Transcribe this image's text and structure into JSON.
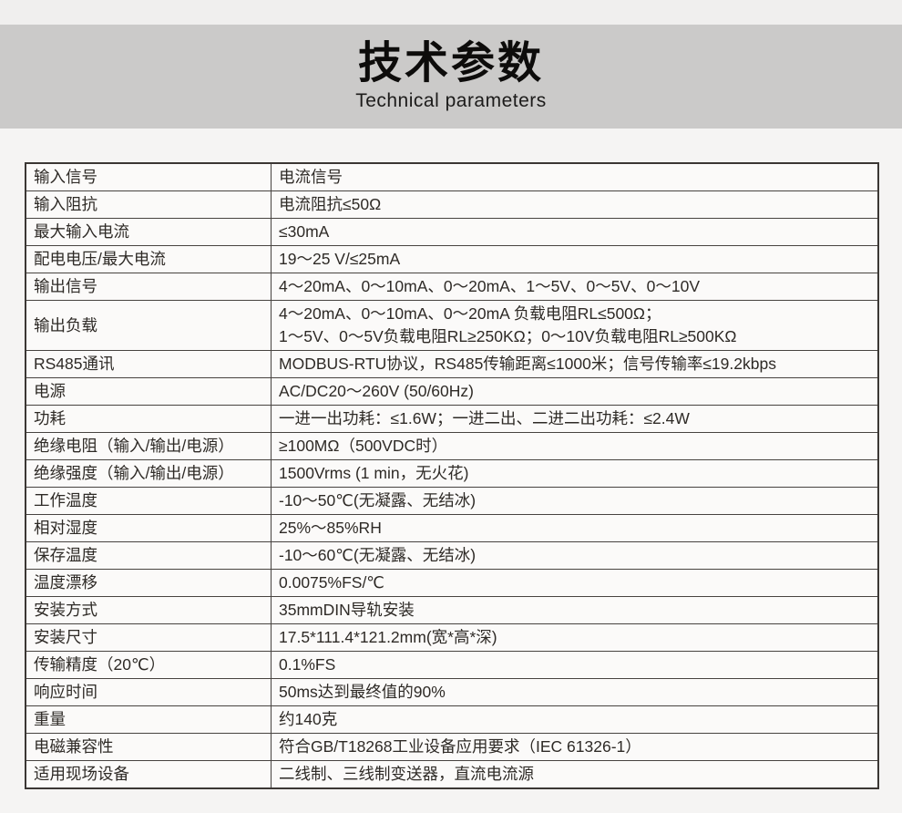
{
  "header": {
    "title": "技术参数",
    "subtitle": "Technical parameters"
  },
  "table": {
    "rows": [
      {
        "label": "输入信号",
        "value": "电流信号"
      },
      {
        "label": "输入阻抗",
        "value": "电流阻抗≤50Ω"
      },
      {
        "label": "最大输入电流",
        "value": "≤30mA"
      },
      {
        "label": "配电电压/最大电流",
        "value": "19～25 V/≤25mA"
      },
      {
        "label": "输出信号",
        "value": "4～20mA、0～10mA、0～20mA、1～5V、0～5V、0～10V"
      },
      {
        "label": "输出负载",
        "value": "4～20mA、0～10mA、0～20mA 负载电阻RL≤500Ω；\n1～5V、0～5V负载电阻RL≥250KΩ；0～10V负载电阻RL≥500KΩ"
      },
      {
        "label": "RS485通讯",
        "value": "MODBUS-RTU协议，RS485传输距离≤1000米；信号传输率≤19.2kbps"
      },
      {
        "label": "电源",
        "value": "AC/DC20～260V (50/60Hz)"
      },
      {
        "label": "功耗",
        "value": "一进一出功耗：≤1.6W；一进二出、二进二出功耗：≤2.4W"
      },
      {
        "label": "绝缘电阻（输入/输出/电源）",
        "value": "≥100MΩ（500VDC时）"
      },
      {
        "label": "绝缘强度（输入/输出/电源）",
        "value": "1500Vrms (1 min，无火花)"
      },
      {
        "label": "工作温度",
        "value": "-10～50℃(无凝露、无结冰)"
      },
      {
        "label": "相对湿度",
        "value": "25%～85%RH"
      },
      {
        "label": "保存温度",
        "value": "-10～60℃(无凝露、无结冰)"
      },
      {
        "label": "温度漂移",
        "value": "0.0075%FS/℃"
      },
      {
        "label": "安装方式",
        "value": "35mmDIN导轨安装"
      },
      {
        "label": "安装尺寸",
        "value": "17.5*111.4*121.2mm(宽*高*深)"
      },
      {
        "label": "传输精度（20℃）",
        "value": "0.1%FS"
      },
      {
        "label": "响应时间",
        "value": "50ms达到最终值的90%"
      },
      {
        "label": "重量",
        "value": "约140克"
      },
      {
        "label": "电磁兼容性",
        "value": "符合GB/T18268工业设备应用要求（IEC 61326-1）"
      },
      {
        "label": "适用现场设备",
        "value": "二线制、三线制变送器，直流电流源"
      }
    ]
  },
  "colors": {
    "page_bg": "#f5f4f3",
    "top_strip_bg": "#f0efee",
    "band_bg": "#cbcac9",
    "cell_bg": "#fbfaf9",
    "table_border": "#3b3734",
    "text": "#2e2a26"
  }
}
